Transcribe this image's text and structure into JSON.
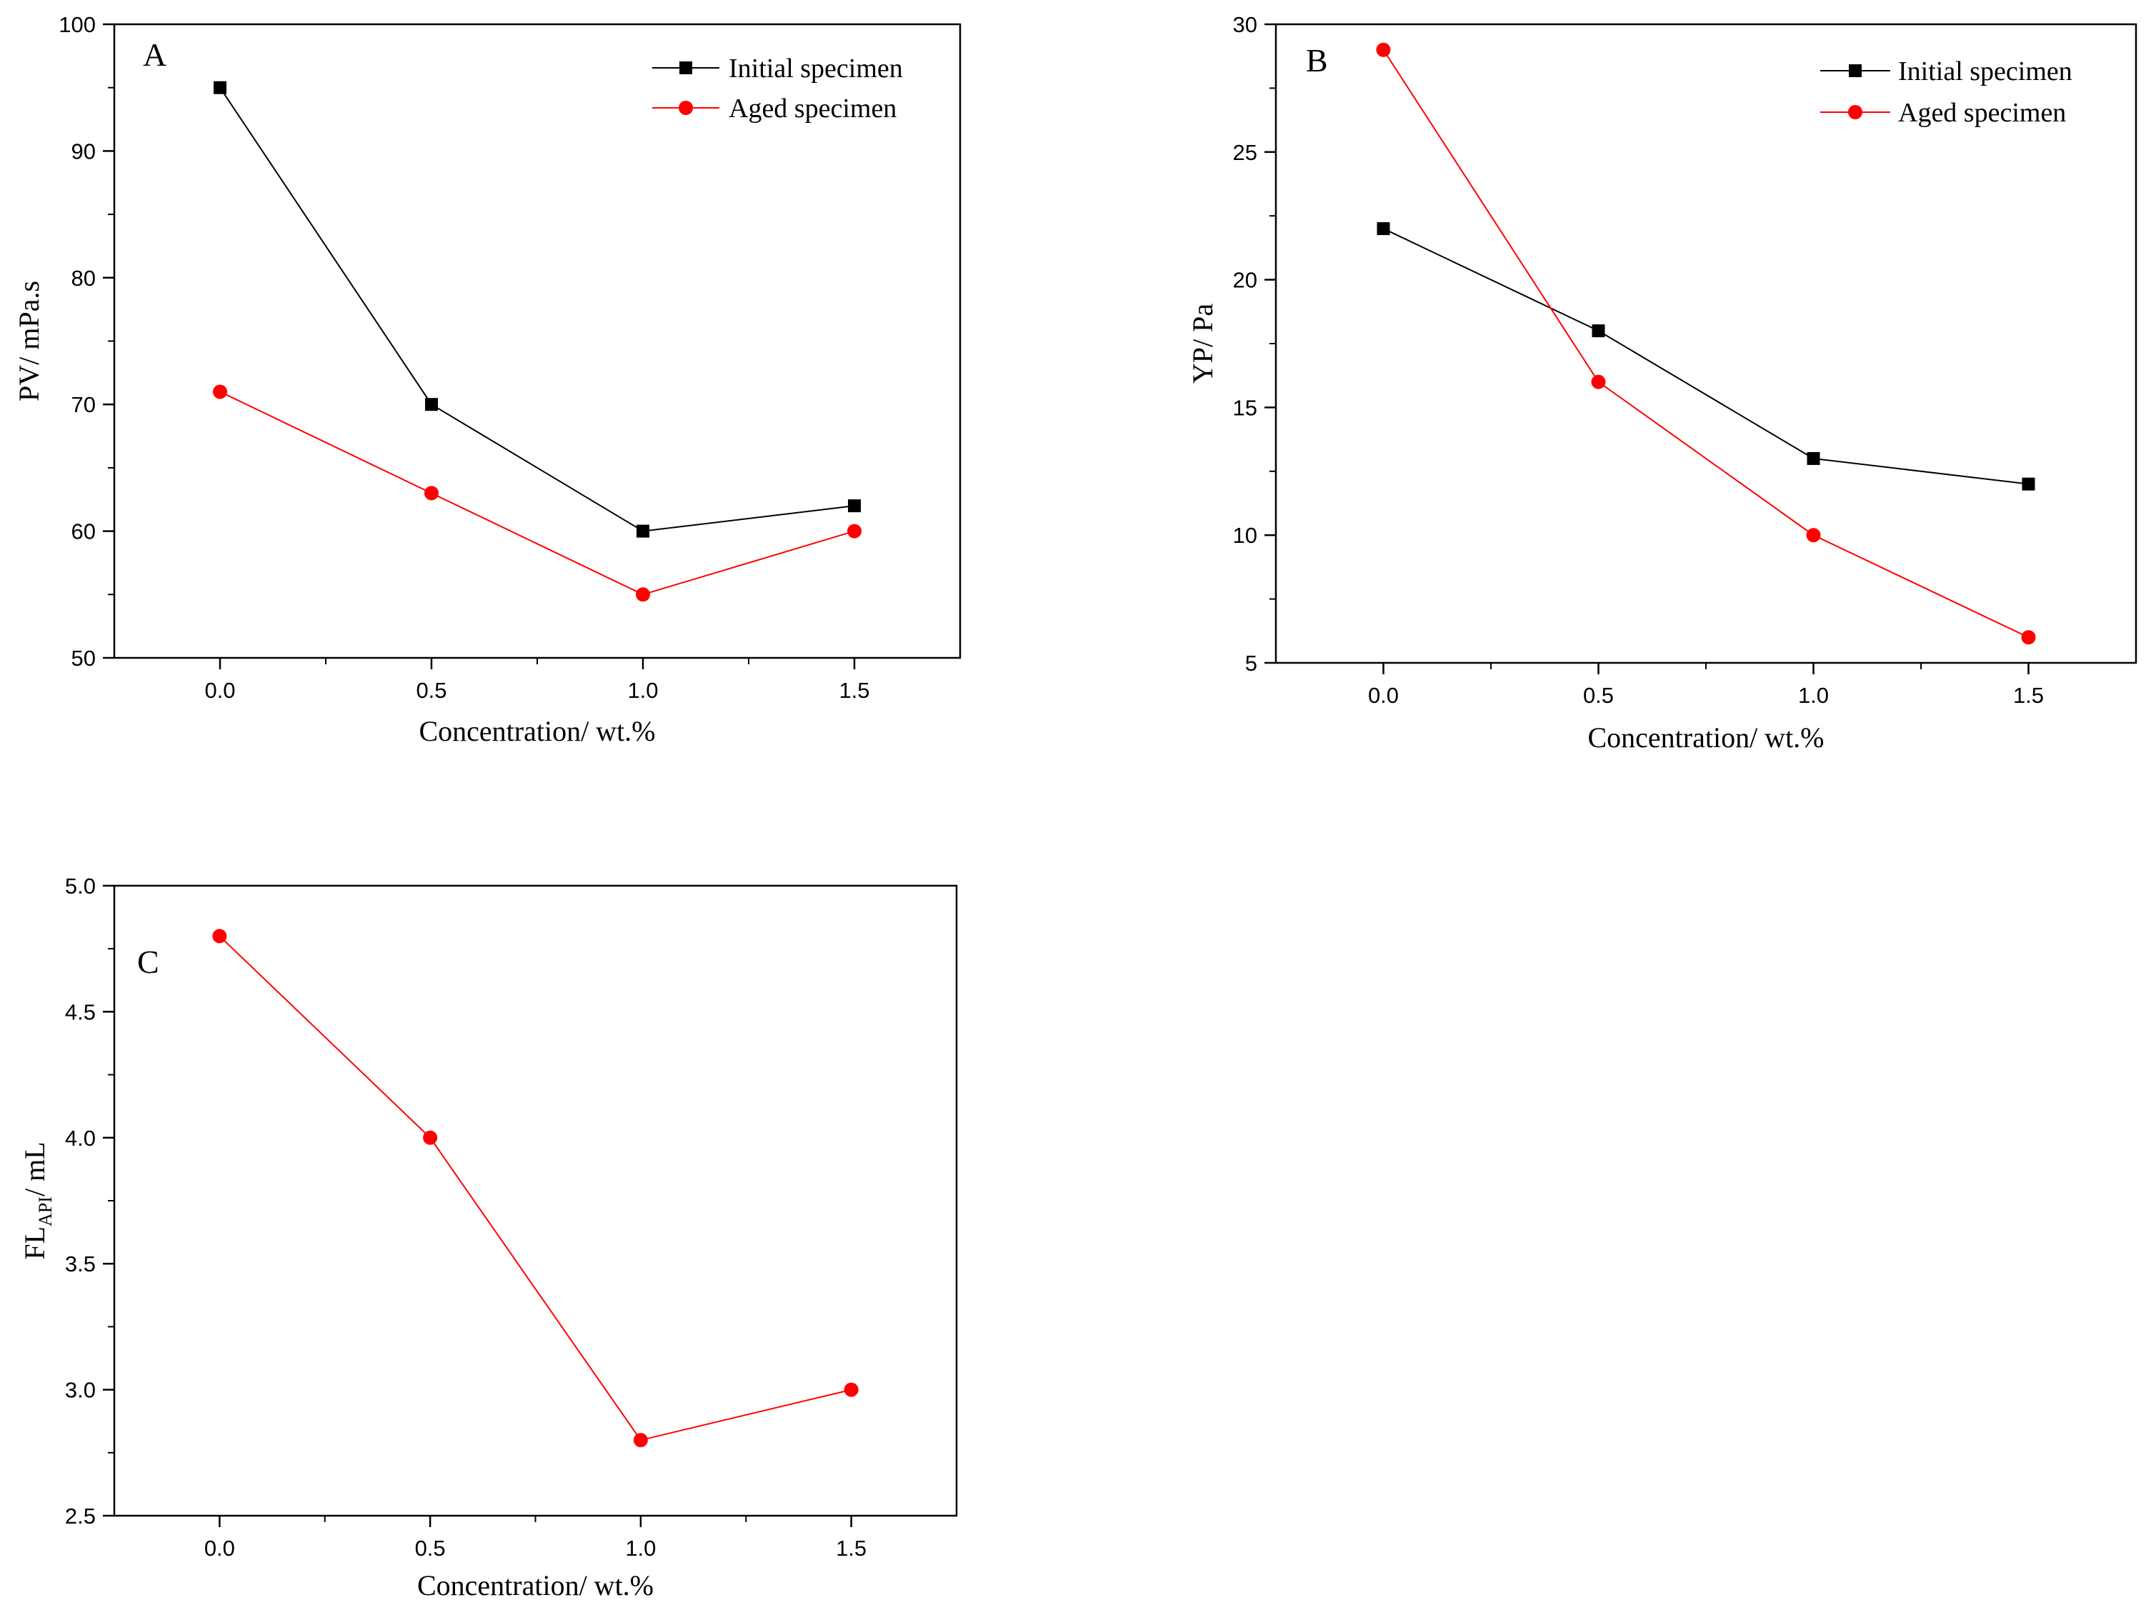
{
  "chart_data": [
    {
      "panel": "A",
      "type": "line",
      "xlabel": "Concentration/ wt.%",
      "ylabel": "PV/ mPa.s",
      "x": [
        0.0,
        0.5,
        1.0,
        1.5
      ],
      "xlim": [
        -0.25,
        1.75
      ],
      "ylim": [
        50,
        100
      ],
      "xticks": [
        "0.0",
        "0.5",
        "1.0",
        "1.5"
      ],
      "yticks": [
        "50",
        "60",
        "70",
        "80",
        "90",
        "100"
      ],
      "legend_position": "top-right",
      "series": [
        {
          "name": "Initial specimen",
          "color": "#000000",
          "marker": "square",
          "values": [
            95,
            70,
            60,
            62
          ]
        },
        {
          "name": "Aged specimen",
          "color": "#ff0000",
          "marker": "circle",
          "values": [
            71,
            63,
            55,
            60
          ]
        }
      ]
    },
    {
      "panel": "B",
      "type": "line",
      "xlabel": "Concentration/ wt.%",
      "ylabel": "YP/ Pa",
      "x": [
        0.0,
        0.5,
        1.0,
        1.5
      ],
      "xlim": [
        -0.25,
        1.75
      ],
      "ylim": [
        5,
        30
      ],
      "xticks": [
        "0.0",
        "0.5",
        "1.0",
        "1.5"
      ],
      "yticks": [
        "5",
        "10",
        "15",
        "20",
        "25",
        "30"
      ],
      "legend_position": "top-right",
      "series": [
        {
          "name": "Initial specimen",
          "color": "#000000",
          "marker": "square",
          "values": [
            22,
            18,
            13,
            12
          ]
        },
        {
          "name": "Aged specimen",
          "color": "#ff0000",
          "marker": "circle",
          "values": [
            29,
            16,
            10,
            6
          ]
        }
      ]
    },
    {
      "panel": "C",
      "type": "line",
      "xlabel": "Concentration/ wt.%",
      "ylabel": "FL",
      "ylabel_sub": "API",
      "ylabel_suffix": "/ mL",
      "x": [
        0.0,
        0.5,
        1.0,
        1.5
      ],
      "xlim": [
        -0.25,
        1.75
      ],
      "ylim": [
        2.5,
        5.0
      ],
      "xticks": [
        "0.0",
        "0.5",
        "1.0",
        "1.5"
      ],
      "yticks": [
        "2.5",
        "3.0",
        "3.5",
        "4.0",
        "4.5",
        "5.0"
      ],
      "legend_position": "none",
      "series": [
        {
          "name": "",
          "color": "#ff0000",
          "marker": "circle",
          "values": [
            4.8,
            4.0,
            2.8,
            3.0
          ]
        }
      ]
    }
  ]
}
